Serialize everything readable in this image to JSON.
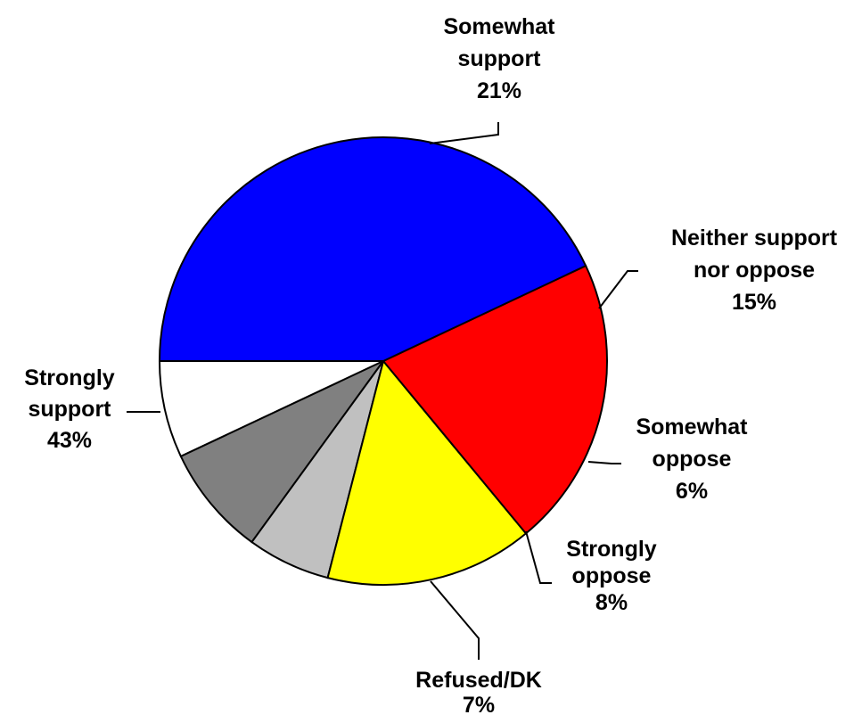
{
  "chart_data": {
    "type": "pie",
    "title": "",
    "legend": "none",
    "start_angle_deg": 180,
    "direction": "counterclockwise",
    "slices": [
      {
        "lines": [
          "Refused/DK"
        ],
        "value_label": "7%",
        "value": 7,
        "color": "#FFFFFF"
      },
      {
        "lines": [
          "Strongly",
          "oppose"
        ],
        "value_label": "8%",
        "value": 8,
        "color": "#808080"
      },
      {
        "lines": [
          "Somewhat",
          "oppose"
        ],
        "value_label": "6%",
        "value": 6,
        "color": "#C0C0C0"
      },
      {
        "lines": [
          "Neither support",
          "nor oppose"
        ],
        "value_label": "15%",
        "value": 15,
        "color": "#FFFF00"
      },
      {
        "lines": [
          "Somewhat",
          "support"
        ],
        "value_label": "21%",
        "value": 21,
        "color": "#FF0000"
      },
      {
        "lines": [
          "Strongly",
          "support"
        ],
        "value_label": "43%",
        "value": 43,
        "color": "#0000FF"
      }
    ]
  }
}
